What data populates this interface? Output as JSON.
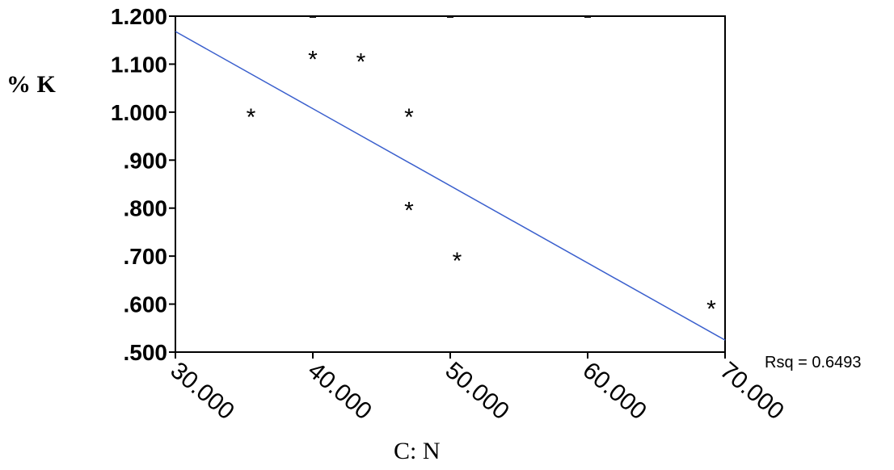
{
  "chart_data": {
    "type": "scatter",
    "xlabel": "C: N",
    "ylabel": "% K",
    "xlim": [
      30,
      70
    ],
    "ylim": [
      0.5,
      1.2
    ],
    "x_ticks": [
      30,
      40,
      50,
      60,
      70
    ],
    "x_tick_labels": [
      "30.000",
      "40.000",
      "50.000",
      "60.000",
      "70.000"
    ],
    "y_ticks": [
      0.5,
      0.6,
      0.7,
      0.8,
      0.9,
      1.0,
      1.1,
      1.2
    ],
    "y_tick_labels": [
      ".500",
      ".600",
      ".700",
      ".800",
      ".900",
      "1.000",
      "1.100",
      "1.200"
    ],
    "marker_symbol": "*",
    "points": [
      {
        "x": 35.5,
        "y": 1.0
      },
      {
        "x": 40.0,
        "y": 1.12
      },
      {
        "x": 43.5,
        "y": 1.115
      },
      {
        "x": 47.0,
        "y": 1.0
      },
      {
        "x": 47.0,
        "y": 0.805
      },
      {
        "x": 50.5,
        "y": 0.7
      },
      {
        "x": 69.0,
        "y": 0.6
      }
    ],
    "fit_line": {
      "x": [
        30,
        70
      ],
      "y": [
        1.168,
        0.525
      ],
      "color": "#3a5fcd"
    },
    "rsq_label": "Rsq = 0.6493"
  }
}
